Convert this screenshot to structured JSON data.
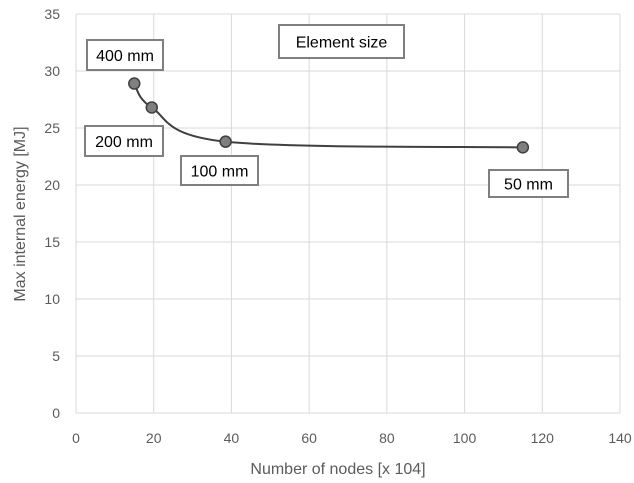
{
  "chart_data": {
    "type": "scatter",
    "xlabel": "Number of nodes [x 104]",
    "ylabel": "Max internal energy [MJ]",
    "xlim": [
      0,
      140
    ],
    "ylim": [
      0,
      35
    ],
    "x_ticks": [
      0,
      20,
      40,
      60,
      80,
      100,
      120,
      140
    ],
    "y_ticks": [
      0,
      5,
      10,
      15,
      20,
      25,
      30,
      35
    ],
    "grid": true,
    "legend": "none",
    "series": [
      {
        "x": [
          15,
          19.5,
          38.5,
          115
        ],
        "y": [
          28.9,
          26.8,
          23.8,
          23.3
        ],
        "marker": "circle",
        "line": "smoothed"
      }
    ],
    "annotations": [
      {
        "text": "400 mm",
        "x": 15,
        "y": 28.9
      },
      {
        "text": "200 mm",
        "x": 19.5,
        "y": 26.8
      },
      {
        "text": "100 mm",
        "x": 38.5,
        "y": 23.8
      },
      {
        "text": "50 mm",
        "x": 115,
        "y": 23.3
      },
      {
        "text": "Element size"
      }
    ],
    "colors": {
      "marker_fill": "#7f7f7f",
      "marker_stroke": "#404040",
      "line": "#404040",
      "grid": "#d9d9d9",
      "axis_text": "#5b5b5b",
      "box_border": "#7f7f7f"
    }
  }
}
